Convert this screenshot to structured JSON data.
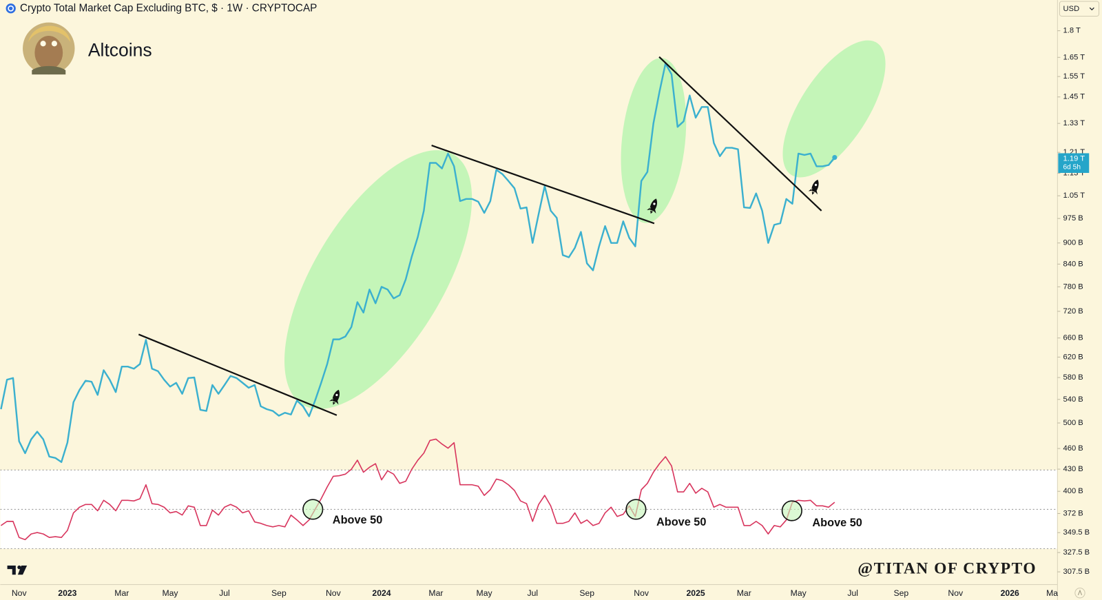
{
  "header": {
    "title": "Crypto Total Market Cap Excluding BTC, $ · 1W · CRYPTOCAP",
    "name": "Altcoins",
    "currency": "USD",
    "watermark": "@TITAN OF CRYPTO"
  },
  "chart_data": [
    {
      "type": "line",
      "log_scale": true,
      "grid": false,
      "color": "#3bb0cf",
      "categories": [
        null,
        null,
        null,
        "Nov",
        null,
        null,
        null,
        null,
        null,
        null,
        null,
        "2023",
        null,
        null,
        null,
        null,
        null,
        null,
        null,
        null,
        "Mar",
        null,
        null,
        null,
        null,
        null,
        null,
        null,
        "May",
        null,
        null,
        null,
        null,
        null,
        null,
        null,
        null,
        "Jul",
        null,
        null,
        null,
        null,
        null,
        null,
        null,
        null,
        "Sep",
        null,
        null,
        null,
        null,
        null,
        null,
        null,
        null,
        "Nov",
        null,
        null,
        null,
        null,
        null,
        null,
        null,
        "2024",
        null,
        null,
        null,
        null,
        null,
        null,
        null,
        null,
        "Mar",
        null,
        null,
        null,
        null,
        null,
        null,
        null,
        "May",
        null,
        null,
        null,
        null,
        null,
        null,
        null,
        "Jul",
        null,
        null,
        null,
        null,
        null,
        null,
        null,
        null,
        "Sep",
        null,
        null,
        null,
        null,
        null,
        null,
        null,
        null,
        "Nov",
        null,
        null,
        null,
        null,
        null,
        null,
        null,
        null,
        "2025",
        null,
        null,
        null,
        null,
        null,
        null,
        null,
        "Mar",
        null,
        null,
        null,
        null,
        null,
        null,
        null,
        null,
        "May",
        null,
        null,
        null,
        null,
        null,
        null,
        null,
        null,
        "Jul",
        null,
        null,
        null,
        null,
        null,
        null,
        null,
        "Sep",
        null,
        null,
        null,
        null,
        null,
        null,
        null,
        null,
        "Nov",
        null,
        null,
        null,
        null,
        null,
        null,
        null,
        null,
        "2026",
        null,
        null,
        null,
        null,
        null,
        null,
        "Ma"
      ],
      "values": [
        523,
        576,
        579,
        471,
        453,
        474,
        486,
        474,
        448,
        446,
        440,
        469,
        535,
        557,
        574,
        572,
        548,
        594,
        576,
        553,
        601,
        601,
        597,
        606,
        656,
        597,
        592,
        576,
        563,
        570,
        550,
        579,
        580,
        522,
        520,
        566,
        550,
        566,
        583,
        579,
        570,
        561,
        566,
        528,
        523,
        520,
        512,
        517,
        514,
        538,
        528,
        511,
        538,
        570,
        606,
        657,
        657,
        663,
        684,
        742,
        717,
        773,
        739,
        780,
        773,
        751,
        759,
        799,
        861,
        918,
        1000,
        1169,
        1169,
        1148,
        1205,
        1156,
        1032,
        1039,
        1039,
        1030,
        993,
        1032,
        1143,
        1127,
        1102,
        1076,
        1007,
        1011,
        900,
        989,
        1084,
        1000,
        977,
        865,
        859,
        886,
        933,
        842,
        823,
        890,
        951,
        900,
        900,
        966,
        915,
        890,
        1102,
        1135,
        1330,
        1474,
        1617,
        1561,
        1315,
        1339,
        1457,
        1355,
        1403,
        1403,
        1248,
        1195,
        1228,
        1228,
        1222,
        1011,
        1009,
        1058,
        1000,
        900,
        955,
        960,
        1039,
        1023,
        1205,
        1200,
        1205,
        1156,
        1156,
        1161,
        1190,
        null,
        null,
        null,
        null,
        null,
        null,
        null,
        null,
        null,
        null,
        null,
        null,
        null,
        null,
        null,
        null,
        null,
        null,
        null,
        null,
        null,
        null,
        null,
        null,
        null,
        null,
        null,
        null,
        null,
        null,
        null,
        null,
        null,
        null,
        null,
        null
      ],
      "ylim": [
        295,
        1990
      ],
      "yticks": [
        {
          "value": 1800,
          "label": "1.8 T"
        },
        {
          "value": 1650,
          "label": "1.65 T"
        },
        {
          "value": 1550,
          "label": "1.55 T"
        },
        {
          "value": 1450,
          "label": "1.45 T"
        },
        {
          "value": 1330,
          "label": "1.33 T"
        },
        {
          "value": 1210,
          "label": "1.21 T"
        },
        {
          "value": 1130,
          "label": "1.13 T"
        },
        {
          "value": 1050,
          "label": "1.05 T"
        },
        {
          "value": 975,
          "label": "975 B"
        },
        {
          "value": 900,
          "label": "900 B"
        },
        {
          "value": 840,
          "label": "840 B"
        },
        {
          "value": 780,
          "label": "780 B"
        },
        {
          "value": 720,
          "label": "720 B"
        },
        {
          "value": 660,
          "label": "660 B"
        },
        {
          "value": 620,
          "label": "620 B"
        },
        {
          "value": 580,
          "label": "580 B"
        },
        {
          "value": 540,
          "label": "540 B"
        },
        {
          "value": 500,
          "label": "500 B"
        },
        {
          "value": 460,
          "label": "460 B"
        },
        {
          "value": 430,
          "label": "430 B"
        },
        {
          "value": 400,
          "label": "400 B"
        },
        {
          "value": 372,
          "label": "372 B"
        },
        {
          "value": 349.5,
          "label": "349.5 B"
        },
        {
          "value": 327.5,
          "label": "327.5 B"
        },
        {
          "value": 307.5,
          "label": "307.5 B"
        }
      ],
      "last_value": {
        "label": "1.19 T",
        "countdown": "6d 5h"
      }
    },
    {
      "type": "line",
      "color": "#d8365e",
      "values": [
        41.8,
        43.9,
        43.9,
        35.7,
        34.6,
        37.5,
        38.2,
        37.5,
        35.7,
        36.1,
        35.7,
        39.3,
        48.2,
        51.1,
        52.5,
        52.5,
        49.3,
        54.6,
        52.5,
        49.3,
        54.6,
        54.6,
        54.3,
        55.4,
        62.5,
        52.9,
        52.5,
        51.1,
        48.2,
        48.9,
        47.1,
        51.8,
        51.1,
        41.8,
        41.8,
        49.6,
        47.1,
        51.1,
        52.5,
        51.1,
        48.2,
        49.3,
        43.6,
        42.9,
        41.8,
        41.1,
        41.8,
        41.1,
        47.1,
        44.6,
        41.8,
        44.6,
        50,
        55.4,
        61.4,
        66.8,
        67.1,
        67.9,
        70.4,
        75,
        68.9,
        71.4,
        73.2,
        65,
        69.6,
        67.9,
        63.2,
        64.3,
        70.4,
        75,
        78.6,
        85,
        85.7,
        83.2,
        81.1,
        83.9,
        62.5,
        62.5,
        62.5,
        61.8,
        57.1,
        60,
        65.4,
        64.6,
        62.5,
        59.6,
        54.3,
        52.9,
        43.9,
        52.5,
        57.1,
        51.8,
        42.9,
        42.9,
        43.9,
        48.2,
        42.9,
        44.6,
        41.8,
        42.9,
        48.2,
        51.1,
        46.4,
        47.5,
        51.8,
        46.4,
        60,
        63.2,
        68.9,
        73.2,
        76.8,
        72.1,
        58.9,
        58.9,
        63.2,
        58.2,
        60.7,
        58.9,
        51.1,
        52.5,
        51.1,
        51.1,
        51.1,
        41.8,
        41.8,
        43.9,
        41.8,
        37.5,
        41.8,
        41.1,
        44.6,
        53.6,
        54.6,
        54.3,
        54.6,
        51.8,
        51.8,
        51.1,
        53.6,
        null,
        null,
        null,
        null,
        null,
        null,
        null,
        null,
        null,
        null,
        null,
        null,
        null,
        null,
        null,
        null,
        null,
        null,
        null,
        null,
        null,
        null,
        null,
        null,
        null,
        null,
        null,
        null,
        null,
        null,
        null,
        null,
        null,
        null,
        null,
        null
      ],
      "ylim": [
        0,
        100
      ],
      "levels": [
        70,
        50,
        30
      ],
      "annotations": [
        "Above 50",
        "Above 50",
        "Above 50"
      ]
    }
  ]
}
